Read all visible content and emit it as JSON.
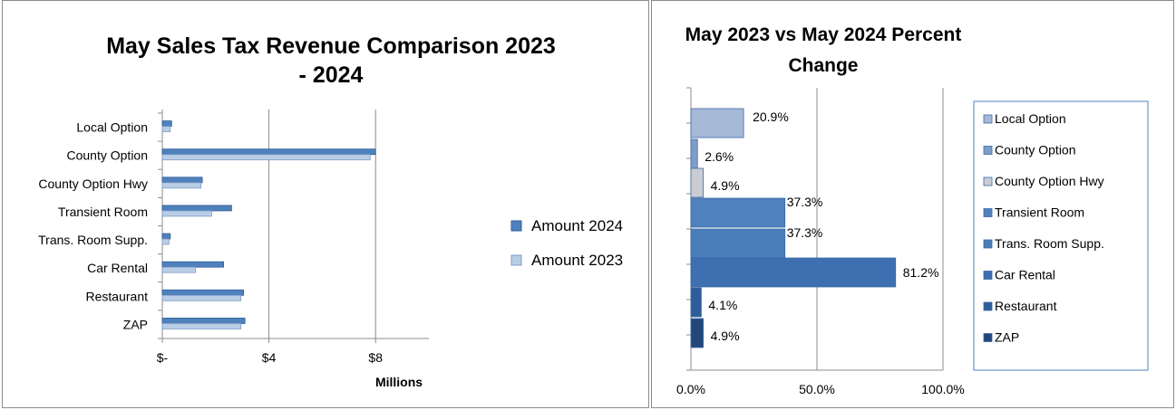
{
  "chart_data": [
    {
      "type": "bar",
      "orientation": "horizontal",
      "title_line1": "May Sales Tax Revenue Comparison 2023",
      "title_line2": "- 2024",
      "xlabel": "Millions",
      "ylabel": "",
      "categories": [
        "Local Option",
        "County Option",
        "County Option Hwy",
        "Transient Room",
        "Trans. Room Supp.",
        "Car Rental",
        "Restaurant",
        "ZAP"
      ],
      "series": [
        {
          "name": "Amount 2024",
          "values": [
            0.35,
            8.0,
            1.5,
            2.6,
            0.3,
            2.3,
            3.05,
            3.1
          ],
          "color": "#4f81bd"
        },
        {
          "name": "Amount 2023",
          "values": [
            0.3,
            7.8,
            1.45,
            1.85,
            0.25,
            1.25,
            2.95,
            2.95
          ],
          "color": "#b9cde5"
        }
      ],
      "xlim": [
        0,
        10
      ],
      "ticks": [
        {
          "value": 0,
          "label": "$-"
        },
        {
          "value": 4,
          "label": "$4"
        },
        {
          "value": 8,
          "label": "$8"
        }
      ],
      "grid": true,
      "legend_position": "right"
    },
    {
      "type": "bar",
      "orientation": "horizontal",
      "title_line1": "May 2023 vs May 2024 Percent",
      "title_line2": "Change",
      "xlabel": "",
      "ylabel": "",
      "categories": [
        "Local Option",
        "County Option",
        "County Option Hwy",
        "Transient Room",
        "Trans. Room Supp.",
        "Car Rental",
        "Restaurant",
        "ZAP"
      ],
      "values": [
        20.9,
        2.6,
        4.9,
        37.3,
        37.3,
        81.2,
        4.1,
        4.9
      ],
      "data_labels": [
        "20.9%",
        "2.6%",
        "4.9%",
        "37.3%",
        "37.3%",
        "81.2%",
        "4.1%",
        "4.9%"
      ],
      "colors": [
        "#a6b9d6",
        "#7f9cc8",
        "#c9cdd3",
        "#4f81bd",
        "#4a7ebb",
        "#3d6fb1",
        "#2f5d9a",
        "#23477a"
      ],
      "xlim": [
        0,
        100
      ],
      "ticks": [
        {
          "value": 0,
          "label": "0.0%"
        },
        {
          "value": 50,
          "label": "50.0%"
        },
        {
          "value": 100,
          "label": "100.0%"
        }
      ],
      "grid": true,
      "legend_position": "right",
      "legend_entries": [
        "Local Option",
        "County Option",
        "County Option Hwy",
        "Transient Room",
        "Trans. Room Supp.",
        "Car Rental",
        "Restaurant",
        "ZAP"
      ]
    }
  ]
}
